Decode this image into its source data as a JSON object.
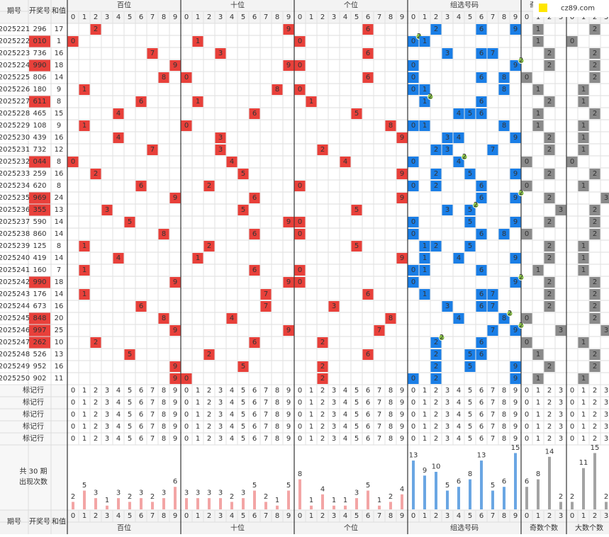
{
  "logo": "cz89.com",
  "headers": {
    "period": "期号",
    "number": "开奖号",
    "sum": "和值"
  },
  "sections": [
    "百位",
    "十位",
    "个位",
    "组选号码",
    "奇数个数",
    "大数个数"
  ],
  "column_digits": [
    0,
    1,
    2,
    3,
    4,
    5,
    6,
    7,
    8,
    9
  ],
  "count_digits": [
    0,
    1,
    2,
    3
  ],
  "pair_badge": "2",
  "draws": [
    {
      "period": "2025221",
      "number": "296",
      "sum": 17,
      "digits": [
        2,
        9,
        6
      ],
      "odd": 1,
      "big": 2
    },
    {
      "period": "2025222",
      "number": "010",
      "sum": 1,
      "digits": [
        0,
        1,
        0
      ],
      "odd": 1,
      "big": 0
    },
    {
      "period": "2025223",
      "number": "736",
      "sum": 16,
      "digits": [
        7,
        3,
        6
      ],
      "odd": 2,
      "big": 2
    },
    {
      "period": "2025224",
      "number": "990",
      "sum": 18,
      "digits": [
        9,
        9,
        0
      ],
      "odd": 2,
      "big": 2
    },
    {
      "period": "2025225",
      "number": "806",
      "sum": 14,
      "digits": [
        8,
        0,
        6
      ],
      "odd": 0,
      "big": 2
    },
    {
      "period": "2025226",
      "number": "180",
      "sum": 9,
      "digits": [
        1,
        8,
        0
      ],
      "odd": 1,
      "big": 1
    },
    {
      "period": "2025227",
      "number": "611",
      "sum": 8,
      "digits": [
        6,
        1,
        1
      ],
      "odd": 2,
      "big": 1
    },
    {
      "period": "2025228",
      "number": "465",
      "sum": 15,
      "digits": [
        4,
        6,
        5
      ],
      "odd": 1,
      "big": 2
    },
    {
      "period": "2025229",
      "number": "108",
      "sum": 9,
      "digits": [
        1,
        0,
        8
      ],
      "odd": 1,
      "big": 1
    },
    {
      "period": "2025230",
      "number": "439",
      "sum": 16,
      "digits": [
        4,
        3,
        9
      ],
      "odd": 2,
      "big": 1
    },
    {
      "period": "2025231",
      "number": "732",
      "sum": 12,
      "digits": [
        7,
        3,
        2
      ],
      "odd": 2,
      "big": 1
    },
    {
      "period": "2025232",
      "number": "044",
      "sum": 8,
      "digits": [
        0,
        4,
        4
      ],
      "odd": 0,
      "big": 0
    },
    {
      "period": "2025233",
      "number": "259",
      "sum": 16,
      "digits": [
        2,
        5,
        9
      ],
      "odd": 2,
      "big": 2
    },
    {
      "period": "2025234",
      "number": "620",
      "sum": 8,
      "digits": [
        6,
        2,
        0
      ],
      "odd": 0,
      "big": 1
    },
    {
      "period": "2025235",
      "number": "969",
      "sum": 24,
      "digits": [
        9,
        6,
        9
      ],
      "odd": 2,
      "big": 3
    },
    {
      "period": "2025236",
      "number": "355",
      "sum": 13,
      "digits": [
        3,
        5,
        5
      ],
      "odd": 3,
      "big": 2
    },
    {
      "period": "2025237",
      "number": "590",
      "sum": 14,
      "digits": [
        5,
        9,
        0
      ],
      "odd": 2,
      "big": 2
    },
    {
      "period": "2025238",
      "number": "860",
      "sum": 14,
      "digits": [
        8,
        6,
        0
      ],
      "odd": 0,
      "big": 2
    },
    {
      "period": "2025239",
      "number": "125",
      "sum": 8,
      "digits": [
        1,
        2,
        5
      ],
      "odd": 2,
      "big": 1
    },
    {
      "period": "2025240",
      "number": "419",
      "sum": 14,
      "digits": [
        4,
        1,
        9
      ],
      "odd": 2,
      "big": 1
    },
    {
      "period": "2025241",
      "number": "160",
      "sum": 7,
      "digits": [
        1,
        6,
        0
      ],
      "odd": 1,
      "big": 1
    },
    {
      "period": "2025242",
      "number": "990",
      "sum": 18,
      "digits": [
        9,
        9,
        0
      ],
      "odd": 2,
      "big": 2
    },
    {
      "period": "2025243",
      "number": "176",
      "sum": 14,
      "digits": [
        1,
        7,
        6
      ],
      "odd": 2,
      "big": 2
    },
    {
      "period": "2025244",
      "number": "673",
      "sum": 16,
      "digits": [
        6,
        7,
        3
      ],
      "odd": 2,
      "big": 2
    },
    {
      "period": "2025245",
      "number": "848",
      "sum": 20,
      "digits": [
        8,
        4,
        8
      ],
      "odd": 0,
      "big": 2
    },
    {
      "period": "2025246",
      "number": "997",
      "sum": 25,
      "digits": [
        9,
        9,
        7
      ],
      "odd": 3,
      "big": 3
    },
    {
      "period": "2025247",
      "number": "262",
      "sum": 10,
      "digits": [
        2,
        6,
        2
      ],
      "odd": 0,
      "big": 1
    },
    {
      "period": "2025248",
      "number": "526",
      "sum": 13,
      "digits": [
        5,
        2,
        6
      ],
      "odd": 1,
      "big": 2
    },
    {
      "period": "2025249",
      "number": "952",
      "sum": 16,
      "digits": [
        9,
        5,
        2
      ],
      "odd": 2,
      "big": 2
    },
    {
      "period": "2025250",
      "number": "902",
      "sum": 11,
      "digits": [
        9,
        0,
        2
      ],
      "odd": 1,
      "big": 1
    }
  ],
  "mark_rows": [
    "标记行",
    "标记行",
    "标记行",
    "标记行",
    "标记行"
  ],
  "stats_label": [
    "共 30 期",
    "出现次数"
  ],
  "stats": [
    [
      2,
      5,
      3,
      1,
      3,
      2,
      3,
      2,
      3,
      6
    ],
    [
      3,
      3,
      3,
      3,
      2,
      3,
      5,
      2,
      1,
      5
    ],
    [
      8,
      1,
      4,
      1,
      1,
      3,
      5,
      1,
      2,
      4
    ],
    [
      13,
      9,
      10,
      5,
      6,
      8,
      13,
      5,
      6,
      15
    ],
    [
      6,
      8,
      14,
      2
    ],
    [
      2,
      11,
      15,
      2
    ]
  ]
}
